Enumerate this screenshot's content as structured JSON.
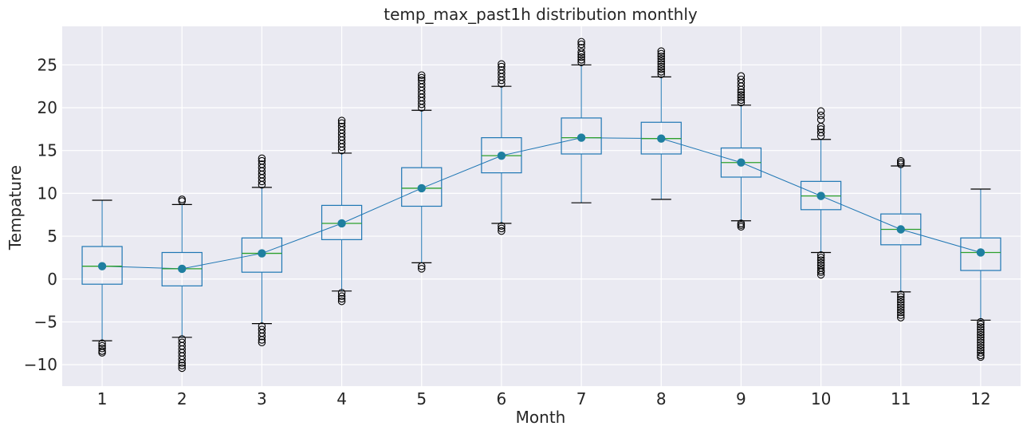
{
  "chart_data": {
    "type": "box",
    "title": "temp_max_past1h distribution monthly",
    "xlabel": "Month",
    "ylabel": "Tempature",
    "categories": [
      "1",
      "2",
      "3",
      "4",
      "5",
      "6",
      "7",
      "8",
      "9",
      "10",
      "11",
      "12"
    ],
    "ylim": [
      -12.5,
      29.5
    ],
    "yticks": [
      -10,
      -5,
      0,
      5,
      10,
      15,
      20,
      25
    ],
    "grid": true,
    "colors": {
      "background": "#eaeaf2",
      "box": "#1f77b4",
      "median": "#2ca02c",
      "mean_line": "#1f77b4",
      "mean_marker": "#1f7fa0",
      "whisker_cap": "#1f77b4",
      "flier": "#000000"
    },
    "boxes": [
      {
        "q1": -0.6,
        "median": 1.5,
        "q3": 3.8,
        "whislo": -7.2,
        "whishi": 9.2,
        "mean": 1.5,
        "fliers": [
          -7.5,
          -7.8,
          -8.1,
          -8.4,
          -8.6
        ]
      },
      {
        "q1": -0.8,
        "median": 1.2,
        "q3": 3.1,
        "whislo": -6.8,
        "whishi": 8.7,
        "mean": 1.2,
        "fliers": [
          9.1,
          9.3,
          -7.0,
          -7.4,
          -7.8,
          -8.2,
          -8.6,
          -9.0,
          -9.4,
          -9.8,
          -10.1,
          -10.4
        ]
      },
      {
        "q1": 0.8,
        "median": 3.0,
        "q3": 4.8,
        "whislo": -5.2,
        "whishi": 10.7,
        "mean": 3.0,
        "fliers": [
          11.0,
          11.4,
          11.8,
          12.2,
          12.6,
          13.0,
          13.4,
          13.8,
          14.1,
          -5.5,
          -5.9,
          -6.3,
          -6.7,
          -7.1,
          -7.4
        ]
      },
      {
        "q1": 4.6,
        "median": 6.5,
        "q3": 8.6,
        "whislo": -1.4,
        "whishi": 14.7,
        "mean": 6.5,
        "fliers": [
          15.0,
          15.4,
          15.8,
          16.2,
          16.6,
          17.0,
          17.4,
          17.8,
          18.2,
          18.5,
          -1.6,
          -2.0,
          -2.3,
          -2.6
        ]
      },
      {
        "q1": 8.5,
        "median": 10.6,
        "q3": 13.0,
        "whislo": 1.9,
        "whishi": 19.7,
        "mean": 10.6,
        "fliers": [
          20.0,
          20.4,
          20.8,
          21.2,
          21.6,
          22.0,
          22.4,
          22.8,
          23.2,
          23.5,
          23.8,
          1.5,
          1.2
        ]
      },
      {
        "q1": 12.4,
        "median": 14.4,
        "q3": 16.5,
        "whislo": 6.5,
        "whishi": 22.5,
        "mean": 14.4,
        "fliers": [
          22.8,
          23.2,
          23.6,
          24.0,
          24.4,
          24.8,
          25.1,
          6.2,
          5.9,
          5.6
        ]
      },
      {
        "q1": 14.6,
        "median": 16.5,
        "q3": 18.8,
        "whislo": 8.9,
        "whishi": 25.0,
        "mean": 16.5,
        "fliers": [
          25.3,
          25.6,
          25.9,
          26.2,
          26.5,
          27.0,
          27.4,
          27.7
        ]
      },
      {
        "q1": 14.6,
        "median": 16.4,
        "q3": 18.3,
        "whislo": 9.3,
        "whishi": 23.6,
        "mean": 16.4,
        "fliers": [
          23.9,
          24.2,
          24.5,
          24.8,
          25.1,
          25.4,
          25.7,
          26.0,
          26.3,
          26.6
        ]
      },
      {
        "q1": 11.9,
        "median": 13.6,
        "q3": 15.3,
        "whislo": 6.8,
        "whishi": 20.3,
        "mean": 13.6,
        "fliers": [
          20.6,
          20.9,
          21.2,
          21.5,
          21.8,
          22.1,
          22.5,
          22.9,
          23.3,
          23.7,
          6.5,
          6.3,
          6.1
        ]
      },
      {
        "q1": 8.1,
        "median": 9.7,
        "q3": 11.4,
        "whislo": 3.1,
        "whishi": 16.3,
        "mean": 9.7,
        "fliers": [
          16.7,
          17.1,
          17.5,
          17.8,
          18.6,
          19.1,
          19.6,
          2.8,
          2.5,
          2.2,
          1.9,
          1.6,
          1.3,
          1.0,
          0.8,
          0.5
        ]
      },
      {
        "q1": 4.0,
        "median": 5.8,
        "q3": 7.6,
        "whislo": -1.5,
        "whishi": 13.2,
        "mean": 5.8,
        "fliers": [
          13.4,
          13.6,
          13.8,
          -1.8,
          -2.1,
          -2.4,
          -2.7,
          -3.0,
          -3.3,
          -3.6,
          -3.9,
          -4.2,
          -4.5
        ]
      },
      {
        "q1": 1.0,
        "median": 3.1,
        "q3": 4.8,
        "whislo": -4.8,
        "whishi": 10.5,
        "mean": 3.1,
        "fliers": [
          -5.0,
          -5.3,
          -5.6,
          -5.9,
          -6.2,
          -6.5,
          -6.8,
          -7.1,
          -7.4,
          -7.7,
          -8.0,
          -8.3,
          -8.6,
          -8.9,
          -9.1
        ]
      }
    ]
  }
}
